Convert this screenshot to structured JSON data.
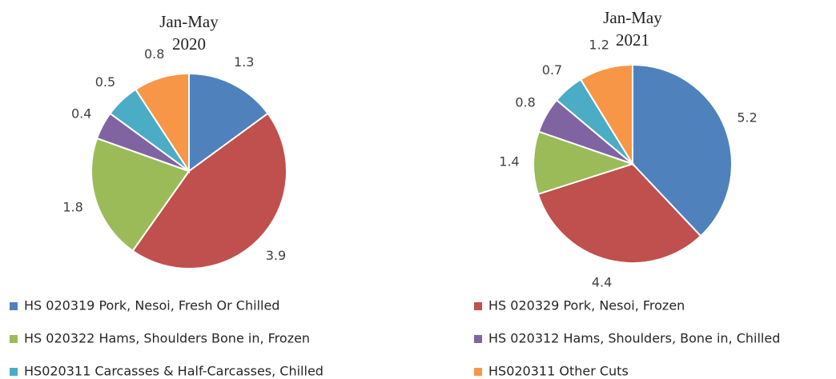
{
  "chart_data": [
    {
      "type": "pie",
      "title": "Jan-May",
      "subtitle": "2020",
      "categories": [
        "HS 020319 Pork, Nesoi, Fresh Or Chilled",
        "HS 020329 Pork, Nesoi, Frozen",
        "HS 020322 Hams, Shoulders Bone in, Frozen",
        "HS 020312 Hams, Shoulders, Bone in, Chilled",
        "HS020311 Carcasses & Half-Carcasses, Chilled",
        "HS020311 Other Cuts"
      ],
      "colors": [
        "#4f81bd",
        "#c0504d",
        "#9bbb59",
        "#8064a2",
        "#4bacc6",
        "#f79646"
      ],
      "values": [
        1.3,
        3.9,
        1.8,
        0.4,
        0.5,
        0.8
      ]
    },
    {
      "type": "pie",
      "title": "Jan-May",
      "subtitle": "2021",
      "categories": [
        "HS 020319 Pork, Nesoi, Fresh Or Chilled",
        "HS 020329 Pork, Nesoi, Frozen",
        "HS 020322 Hams, Shoulders Bone in, Frozen",
        "HS 020312 Hams, Shoulders, Bone in, Chilled",
        "HS020311 Carcasses & Half-Carcasses, Chilled",
        "HS020311 Other Cuts"
      ],
      "colors": [
        "#4f81bd",
        "#c0504d",
        "#9bbb59",
        "#8064a2",
        "#4bacc6",
        "#f79646"
      ],
      "values": [
        5.2,
        4.4,
        1.4,
        0.8,
        0.7,
        1.2
      ]
    }
  ]
}
